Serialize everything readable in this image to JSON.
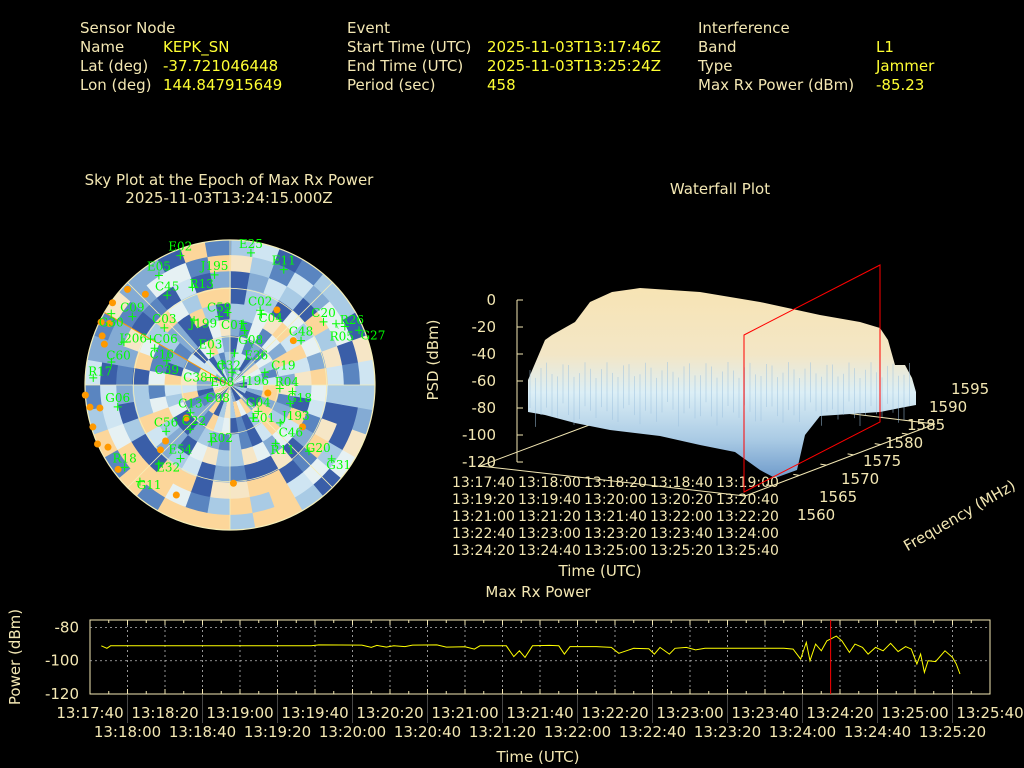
{
  "header": {
    "sensor": {
      "title": "Sensor Node",
      "name_label": "Name",
      "name": "KEPK_SN",
      "lat_label": "Lat (deg)",
      "lat": "-37.721046448",
      "lon_label": "Lon (deg)",
      "lon": "144.847915649"
    },
    "event": {
      "title": "Event",
      "start_label": "Start Time (UTC)",
      "start": "2025-11-03T13:17:46Z",
      "end_label": "End Time (UTC)",
      "end": "2025-11-03T13:25:24Z",
      "period_label": "Period (sec)",
      "period": "458"
    },
    "interference": {
      "title": "Interference",
      "band_label": "Band",
      "band": "L1",
      "type_label": "Type",
      "type": "Jammer",
      "power_label": "Max Rx Power (dBm)",
      "power": "-85.23"
    }
  },
  "colors": {
    "label": "#f3e7b3",
    "value": "#ffff33",
    "satellite": "#00ff00",
    "interference": "#ff9900",
    "marker": "#ff0000",
    "trace": "#ffff00"
  },
  "chart_data": [
    {
      "type": "scatter",
      "kind": "sky-plot",
      "title": "Sky Plot at the Epoch of Max Rx Power",
      "subtitle": "2025-11-03T13:24:15.000Z",
      "elevation_rings": [
        0,
        30,
        60
      ],
      "jammer_azimuth": 300,
      "heatmap_palette": [
        "#3a5ea8",
        "#5a85c0",
        "#84abd4",
        "#a9cbe5",
        "#cfe5f2",
        "#e6f1f3",
        "#f6e6c6",
        "#fcd69a"
      ],
      "satellites": [
        {
          "id": "E02",
          "az": 339,
          "el": 4
        },
        {
          "id": "E25",
          "az": 9,
          "el": 7
        },
        {
          "id": "E11",
          "az": 25,
          "el": 11
        },
        {
          "id": "J195",
          "az": 352,
          "el": 21
        },
        {
          "id": "E05",
          "az": 327,
          "el": 9
        },
        {
          "id": "R13",
          "az": 339,
          "el": 25
        },
        {
          "id": "C45",
          "az": 325,
          "el": 22
        },
        {
          "id": "C59",
          "az": 351,
          "el": 47
        },
        {
          "id": "C01",
          "az": 358,
          "el": 45
        },
        {
          "id": "C02",
          "az": 22,
          "el": 40
        },
        {
          "id": "C04",
          "az": 24,
          "el": 42
        },
        {
          "id": "G08",
          "az": 12,
          "el": 51
        },
        {
          "id": "E36",
          "az": 15,
          "el": 55
        },
        {
          "id": "J199",
          "az": 331,
          "el": 44
        },
        {
          "id": "C09",
          "az": 305,
          "el": 16
        },
        {
          "id": "G30",
          "az": 301,
          "el": 4
        },
        {
          "id": "C03",
          "az": 311,
          "el": 36
        },
        {
          "id": "C20",
          "az": 56,
          "el": 20
        },
        {
          "id": "R26",
          "az": 63,
          "el": 10
        },
        {
          "id": "R05",
          "az": 60,
          "el": 14
        },
        {
          "id": "G27",
          "az": 67,
          "el": 3
        },
        {
          "id": "C48",
          "az": 58,
          "el": 38
        },
        {
          "id": "J206",
          "az": 292,
          "el": 19
        },
        {
          "id": "C06",
          "az": 300,
          "el": 33
        },
        {
          "id": "C16",
          "az": 296,
          "el": 38
        },
        {
          "id": "C39",
          "az": 291,
          "el": 48
        },
        {
          "id": "C60",
          "az": 281,
          "el": 15
        },
        {
          "id": "R17",
          "az": 273,
          "el": 5
        },
        {
          "id": "E03",
          "az": 328,
          "el": 67
        },
        {
          "id": "C32",
          "az": 8,
          "el": 70
        },
        {
          "id": "E08",
          "az": 340,
          "el": 76
        },
        {
          "id": "J196",
          "az": 9,
          "el": 82
        },
        {
          "id": "C38",
          "az": 291,
          "el": 77
        },
        {
          "id": "C19",
          "az": 70,
          "el": 67
        },
        {
          "id": "C08",
          "az": 240,
          "el": 74
        },
        {
          "id": "R04",
          "az": 94,
          "el": 59
        },
        {
          "id": "G18",
          "az": 96,
          "el": 51
        },
        {
          "id": "J193",
          "az": 107,
          "el": 51
        },
        {
          "id": "G04",
          "az": 133,
          "el": 66
        },
        {
          "id": "E01",
          "az": 145,
          "el": 65
        },
        {
          "id": "C46",
          "az": 127,
          "el": 51
        },
        {
          "id": "G06",
          "az": 259,
          "el": 19
        },
        {
          "id": "C13",
          "az": 235,
          "el": 60
        },
        {
          "id": "C56",
          "az": 234,
          "el": 41
        },
        {
          "id": "C22",
          "az": 222,
          "el": 53
        },
        {
          "id": "R02",
          "az": 198,
          "el": 53
        },
        {
          "id": "R11",
          "az": 142,
          "el": 44
        },
        {
          "id": "G20",
          "az": 130,
          "el": 26
        },
        {
          "id": "G31",
          "az": 126,
          "el": 12
        },
        {
          "id": "E54",
          "az": 214,
          "el": 35
        },
        {
          "id": "E32",
          "az": 222,
          "el": 24
        },
        {
          "id": "R18",
          "az": 232,
          "el": 7
        },
        {
          "id": "G11",
          "az": 223,
          "el": 8
        }
      ],
      "interference_points": [
        {
          "az": 313,
          "el": 3
        },
        {
          "az": 317,
          "el": 13
        },
        {
          "az": 305,
          "el": 1
        },
        {
          "az": 296,
          "el": 1
        },
        {
          "az": 297,
          "el": 6
        },
        {
          "az": 291,
          "el": 5
        },
        {
          "az": 288,
          "el": 8
        },
        {
          "az": 266,
          "el": 0
        },
        {
          "az": 261,
          "el": 2
        },
        {
          "az": 260,
          "el": 8
        },
        {
          "az": 253,
          "el": 1
        },
        {
          "az": 246,
          "el": 0
        },
        {
          "az": 243,
          "el": 5
        },
        {
          "az": 233,
          "el": 3
        },
        {
          "az": 206,
          "el": 14
        },
        {
          "az": 178,
          "el": 29
        },
        {
          "az": 229,
          "el": 37
        },
        {
          "az": 227,
          "el": 31
        },
        {
          "az": 233,
          "el": 56
        },
        {
          "az": 32,
          "el": 35
        },
        {
          "az": 55,
          "el": 42
        },
        {
          "az": 102,
          "el": 66
        },
        {
          "az": 120,
          "el": 38
        }
      ]
    },
    {
      "type": "surface",
      "kind": "waterfall",
      "title": "Waterfall Plot",
      "zlabel": "PSD (dBm)",
      "xlabel": "Time (UTC)",
      "ylabel": "Frequency (MHz)",
      "zlim": [
        -120,
        0
      ],
      "z_ticks": [
        "0",
        "-20",
        "-40",
        "-60",
        "-80",
        "-100",
        "-120"
      ],
      "freq_ticks": [
        "1560",
        "1565",
        "1570",
        "1575",
        "1580",
        "1585",
        "1590",
        "1595"
      ],
      "time_ticks": [
        "13:17:40",
        "13:18:00",
        "13:18:20",
        "13:18:40",
        "13:19:00",
        "13:19:20",
        "13:19:40",
        "13:20:00",
        "13:20:20",
        "13:20:40",
        "13:21:00",
        "13:21:20",
        "13:21:40",
        "13:22:00",
        "13:22:20",
        "13:22:40",
        "13:23:00",
        "13:23:20",
        "13:23:40",
        "13:24:00",
        "13:24:20",
        "13:24:40",
        "13:25:00",
        "13:25:20",
        "13:25:40"
      ],
      "marker_time": "13:24:15"
    },
    {
      "type": "line",
      "title": "Max Rx Power",
      "xlabel": "Time (UTC)",
      "ylabel": "Power (dBm)",
      "xlim": [
        "13:17:40",
        "13:25:40"
      ],
      "ylim": [
        -120,
        -75.5
      ],
      "y_ticks": [
        "-80",
        "-100",
        "-120"
      ],
      "x_ticks": [
        "13:17:40",
        "13:18:00",
        "13:18:20",
        "13:18:40",
        "13:19:00",
        "13:19:20",
        "13:19:40",
        "13:20:00",
        "13:20:20",
        "13:20:40",
        "13:21:00",
        "13:21:20",
        "13:21:40",
        "13:22:00",
        "13:22:20",
        "13:22:40",
        "13:23:00",
        "13:23:20",
        "13:23:40",
        "13:24:00",
        "13:24:20",
        "13:24:40",
        "13:25:00",
        "13:25:20",
        "13:25:40"
      ],
      "grid": true,
      "marker_time": "13:24:15",
      "points": [
        [
          "13:17:46",
          -91
        ],
        [
          "13:17:49",
          -92.5
        ],
        [
          "13:17:51",
          -91
        ],
        [
          "13:18:10",
          -91
        ],
        [
          "13:18:40",
          -91
        ],
        [
          "13:19:10",
          -91
        ],
        [
          "13:19:38",
          -91
        ],
        [
          "13:19:42",
          -90.5
        ],
        [
          "13:20:05",
          -90.6
        ],
        [
          "13:20:10",
          -92
        ],
        [
          "13:20:13",
          -90.8
        ],
        [
          "13:20:18",
          -91.8
        ],
        [
          "13:20:22",
          -91
        ],
        [
          "13:20:28",
          -91.5
        ],
        [
          "13:20:32",
          -90.6
        ],
        [
          "13:20:45",
          -90.5
        ],
        [
          "13:20:50",
          -91.8
        ],
        [
          "13:21:00",
          -91.6
        ],
        [
          "13:21:05",
          -93
        ],
        [
          "13:21:08",
          -91
        ],
        [
          "13:21:22",
          -91
        ],
        [
          "13:21:26",
          -97.5
        ],
        [
          "13:21:29",
          -94
        ],
        [
          "13:21:32",
          -98
        ],
        [
          "13:21:36",
          -91
        ],
        [
          "13:21:45",
          -90.8
        ],
        [
          "13:21:50",
          -91
        ],
        [
          "13:21:53",
          -96
        ],
        [
          "13:21:56",
          -91.5
        ],
        [
          "13:22:10",
          -91.5
        ],
        [
          "13:22:18",
          -92
        ],
        [
          "13:22:22",
          -95.5
        ],
        [
          "13:22:26",
          -94
        ],
        [
          "13:22:30",
          -92.5
        ],
        [
          "13:22:38",
          -92.8
        ],
        [
          "13:22:41",
          -96
        ],
        [
          "13:22:44",
          -92
        ],
        [
          "13:22:49",
          -96
        ],
        [
          "13:22:52",
          -92.5
        ],
        [
          "13:22:58",
          -92
        ],
        [
          "13:23:03",
          -93.5
        ],
        [
          "13:23:08",
          -92.5
        ],
        [
          "13:23:50",
          -92.5
        ],
        [
          "13:23:55",
          -93
        ],
        [
          "13:23:59",
          -99
        ],
        [
          "13:24:02",
          -89
        ],
        [
          "13:24:04",
          -100
        ],
        [
          "13:24:07",
          -90
        ],
        [
          "13:24:10",
          -94
        ],
        [
          "13:24:13",
          -88
        ],
        [
          "13:24:15",
          -87
        ],
        [
          "13:24:18",
          -85.2
        ],
        [
          "13:24:21",
          -88
        ],
        [
          "13:24:25",
          -95
        ],
        [
          "13:24:28",
          -90
        ],
        [
          "13:24:32",
          -92
        ],
        [
          "13:24:35",
          -96
        ],
        [
          "13:24:39",
          -92
        ],
        [
          "13:24:43",
          -94
        ],
        [
          "13:24:47",
          -89.5
        ],
        [
          "13:24:51",
          -94.5
        ],
        [
          "13:24:55",
          -91.5
        ],
        [
          "13:24:58",
          -93
        ],
        [
          "13:25:01",
          -102
        ],
        [
          "13:25:03",
          -96
        ],
        [
          "13:25:05",
          -107
        ],
        [
          "13:25:07",
          -100
        ],
        [
          "13:25:11",
          -100.5
        ],
        [
          "13:25:16",
          -94
        ],
        [
          "13:25:20",
          -98
        ],
        [
          "13:25:22",
          -102
        ],
        [
          "13:25:24",
          -108
        ]
      ]
    }
  ]
}
